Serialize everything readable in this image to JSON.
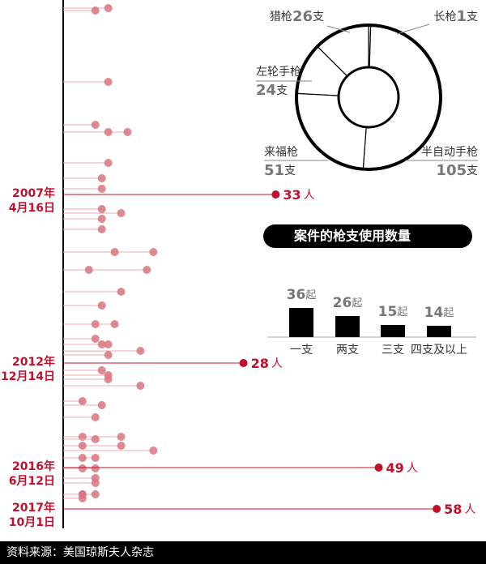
{
  "chart_data": [
    {
      "type": "lollipop",
      "rows": [
        [
          7
        ],
        [
          5
        ],
        [
          7
        ],
        [
          5
        ],
        [
          7,
          10
        ],
        [
          7
        ],
        [
          6
        ],
        [
          6
        ],
        [
          6
        ],
        [
          9
        ],
        [
          6
        ],
        [
          6
        ],
        [
          8,
          14
        ],
        [
          4,
          13
        ],
        [
          9
        ],
        [
          6
        ],
        [
          5,
          8
        ],
        [
          5
        ],
        [
          7,
          6
        ],
        [
          12
        ],
        [
          7
        ],
        [
          6
        ],
        [
          7
        ],
        [
          7
        ],
        [
          12
        ],
        [
          3
        ],
        [
          6
        ],
        [
          5
        ],
        [
          3,
          9
        ],
        [
          5
        ],
        [
          3,
          9
        ],
        [
          14
        ],
        [
          3,
          5
        ],
        [
          3,
          5
        ],
        [
          5
        ],
        [
          5
        ],
        [
          3,
          3,
          5
        ],
        [
          3
        ]
      ],
      "events": [
        {
          "year": "2007年",
          "day": "4月16日",
          "value": 33,
          "unit": "人"
        },
        {
          "year": "2012年",
          "day": "12月14日",
          "value": 28,
          "unit": "人"
        },
        {
          "year": "2016年",
          "day": "6月12日",
          "value": 49,
          "unit": "人"
        },
        {
          "year": "2017年",
          "day": "10月1日",
          "value": 58,
          "unit": "人"
        }
      ],
      "color": "#d9747f",
      "highlight_color": "#c0102a"
    },
    {
      "type": "donut",
      "slices": [
        {
          "name": "长枪",
          "value": 1,
          "unit": "支"
        },
        {
          "name": "半自动手枪",
          "value": 105,
          "unit": "支"
        },
        {
          "name": "来福枪",
          "value": 51,
          "unit": "支"
        },
        {
          "name": "左轮手枪",
          "value": 24,
          "unit": "支"
        },
        {
          "name": "猎枪",
          "value": 26,
          "unit": "支"
        }
      ]
    },
    {
      "type": "bar",
      "title": "案件的枪支使用数量",
      "categories": [
        "一支",
        "两支",
        "三支",
        "四支及以上"
      ],
      "values": [
        36,
        26,
        15,
        14
      ],
      "unit": "起",
      "color": "#000000"
    }
  ],
  "source": "资料来源：美国琼斯夫人杂志"
}
